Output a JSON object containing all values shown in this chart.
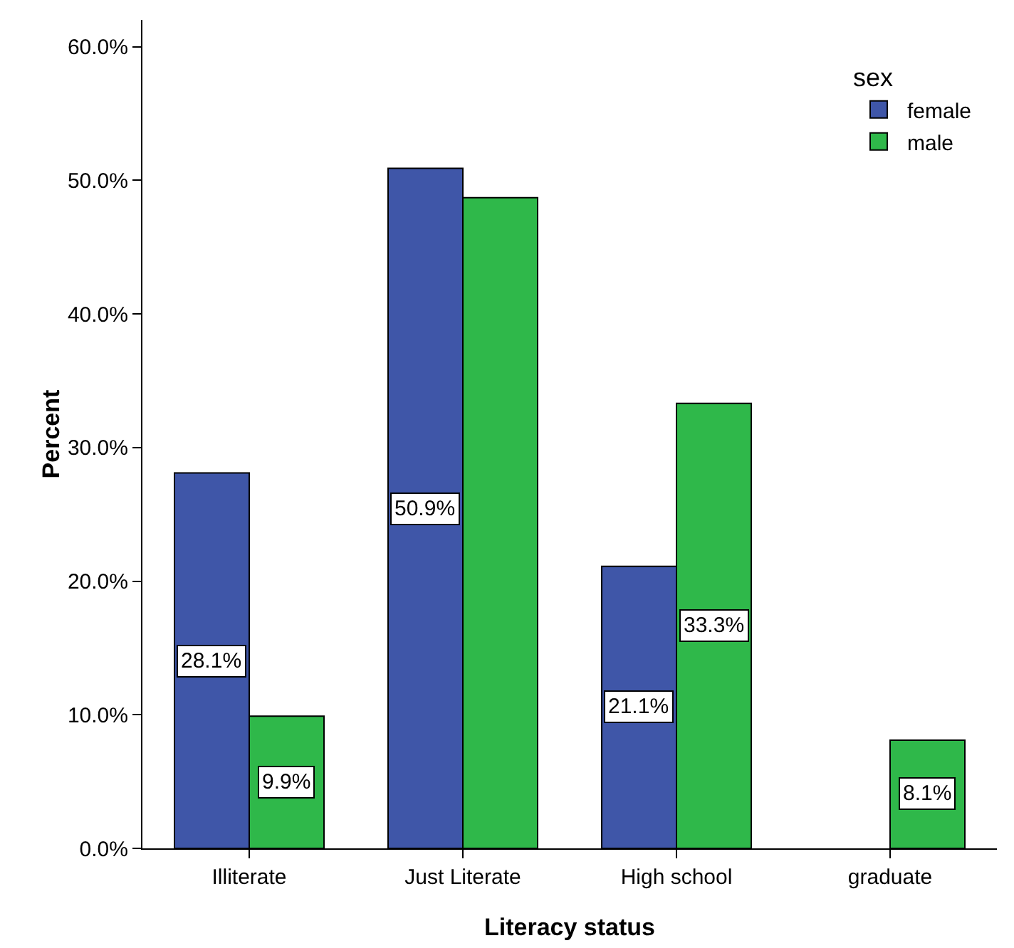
{
  "chart_data": {
    "type": "bar",
    "xlabel": "Literacy status",
    "ylabel": "Percent",
    "legend_title": "sex",
    "legend": "top right",
    "grid": false,
    "categories": [
      "Illiterate",
      "Just Literate",
      "High school",
      "graduate"
    ],
    "series": [
      {
        "name": "female",
        "color": "#3f56a8",
        "values": [
          28.1,
          50.9,
          21.1,
          null
        ],
        "value_labels": [
          "28.1%",
          "50.9%",
          "21.1%",
          null
        ]
      },
      {
        "name": "male",
        "color": "#2fb84a",
        "values": [
          9.9,
          48.7,
          33.3,
          8.1
        ],
        "value_labels": [
          "9.9%",
          null,
          "33.3%",
          "8.1%"
        ]
      }
    ],
    "ylim": [
      0,
      62
    ],
    "yticks": [
      {
        "value": 0,
        "label": "0.0%"
      },
      {
        "value": 10,
        "label": "10.0%"
      },
      {
        "value": 20,
        "label": "20.0%"
      },
      {
        "value": 30,
        "label": "30.0%"
      },
      {
        "value": 40,
        "label": "40.0%"
      },
      {
        "value": 50,
        "label": "50.0%"
      },
      {
        "value": 60,
        "label": "60.0%"
      }
    ]
  }
}
